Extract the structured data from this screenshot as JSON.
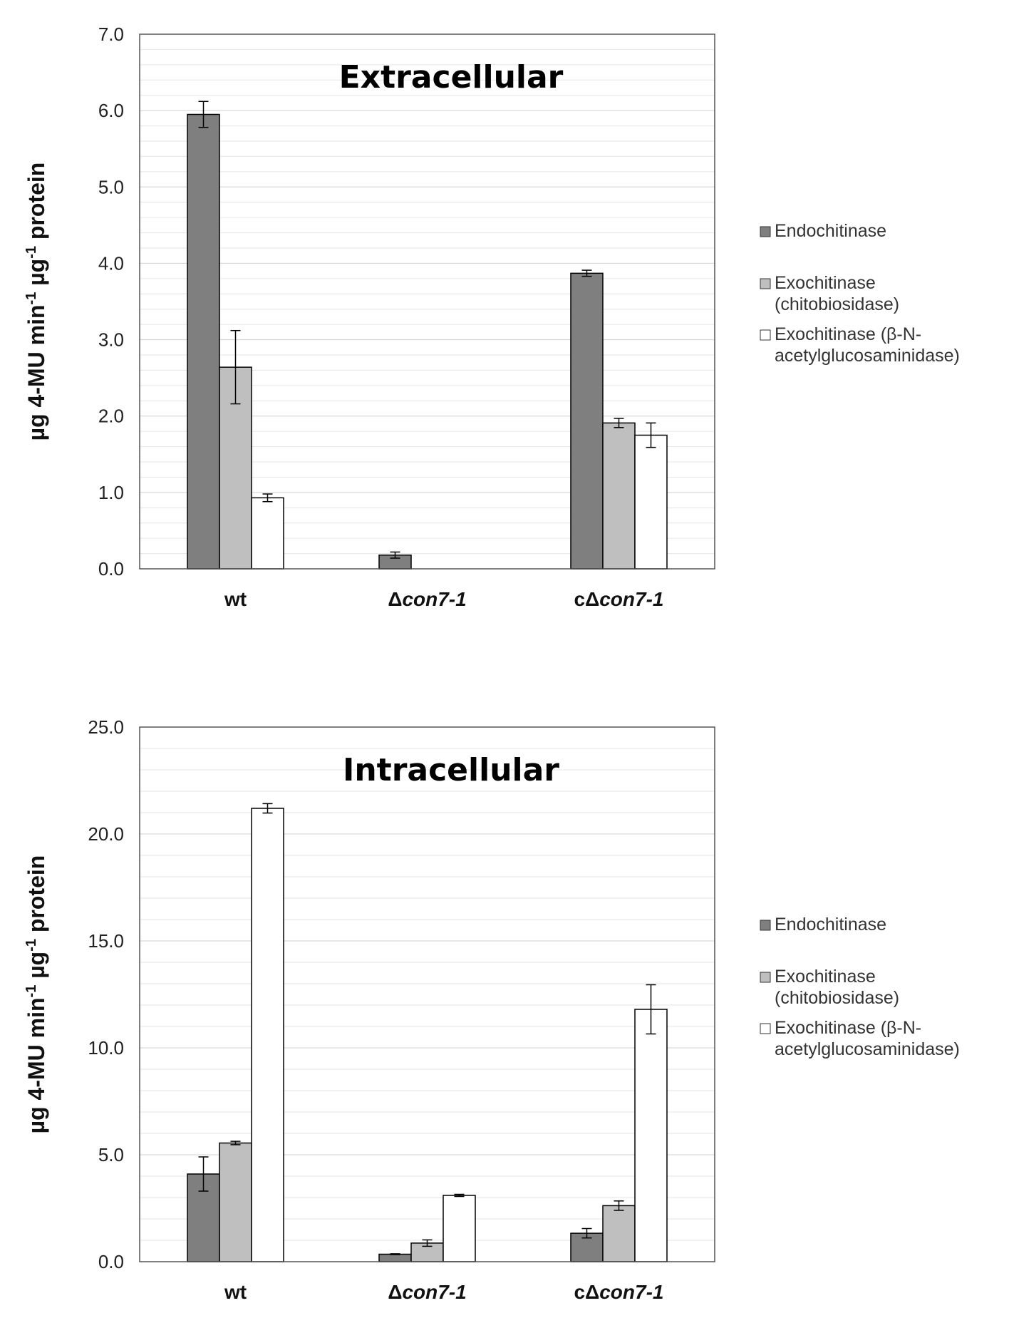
{
  "chart_data": [
    {
      "type": "bar",
      "title": "Extracellular",
      "ylabel": {
        "part1": "µg 4-MU min",
        "sup1": "-1",
        "part2": " µg",
        "sup2": "-1",
        "part3": " protein"
      },
      "ylim": [
        0,
        7.0
      ],
      "ytick_labels": [
        "0.0",
        "1.0",
        "2.0",
        "3.0",
        "4.0",
        "5.0",
        "6.0",
        "7.0"
      ],
      "ytick_values": [
        0,
        1,
        2,
        3,
        4,
        5,
        6,
        7
      ],
      "minor_step": 0.2,
      "grid": true,
      "legend_position": "right",
      "categories": [
        {
          "prefix": "",
          "italic": "wt",
          "italic_style": "normal"
        },
        {
          "prefix": "Δ",
          "italic": "con7-1",
          "italic_style": "italic"
        },
        {
          "prefix": "cΔ",
          "italic": "con7-1",
          "italic_style": "italic"
        }
      ],
      "series": [
        {
          "name": "Endochitinase",
          "color": "#7f7f7f",
          "values": [
            5.95,
            0.18,
            3.87
          ],
          "errors": [
            0.17,
            0.04,
            0.04
          ]
        },
        {
          "name": "Exochitinase (chitobiosidase)",
          "color": "#bfbfbf",
          "values": [
            2.64,
            0,
            1.91
          ],
          "errors": [
            0.48,
            0,
            0.06
          ]
        },
        {
          "name": "Exochitinase (β-N-acetylglucosaminidase)",
          "color": "#ffffff",
          "values": [
            0.93,
            0,
            1.75
          ],
          "errors": [
            0.05,
            0,
            0.16
          ]
        }
      ],
      "legend": [
        {
          "lines": [
            "Endochitinase"
          ]
        },
        {
          "lines": [
            "Exochitinase",
            "(chitobiosidase)"
          ]
        },
        {
          "lines": [
            "Exochitinase (β-N-",
            "acetylglucosaminidase)"
          ]
        }
      ]
    },
    {
      "type": "bar",
      "title": "Intracellular",
      "ylabel": {
        "part1": "µg 4-MU min",
        "sup1": "-1",
        "part2": " µg",
        "sup2": "-1",
        "part3": " protein"
      },
      "ylim": [
        0,
        25.0
      ],
      "ytick_labels": [
        "0.0",
        "5.0",
        "10.0",
        "15.0",
        "20.0",
        "25.0"
      ],
      "ytick_values": [
        0,
        5,
        10,
        15,
        20,
        25
      ],
      "minor_step": 1,
      "grid": true,
      "legend_position": "right",
      "categories": [
        {
          "prefix": "",
          "italic": "wt",
          "italic_style": "normal"
        },
        {
          "prefix": "Δ",
          "italic": "con7-1",
          "italic_style": "italic"
        },
        {
          "prefix": "cΔ",
          "italic": "con7-1",
          "italic_style": "italic"
        }
      ],
      "series": [
        {
          "name": "Endochitinase",
          "color": "#7f7f7f",
          "values": [
            4.1,
            0.35,
            1.33
          ],
          "errors": [
            0.8,
            0.02,
            0.22
          ]
        },
        {
          "name": "Exochitinase (chitobiosidase)",
          "color": "#bfbfbf",
          "values": [
            5.55,
            0.87,
            2.62
          ],
          "errors": [
            0.08,
            0.15,
            0.22
          ]
        },
        {
          "name": "Exochitinase (β-N-acetylglucosaminidase)",
          "color": "#ffffff",
          "values": [
            21.2,
            3.1,
            11.8
          ],
          "errors": [
            0.22,
            0.05,
            1.15
          ]
        }
      ],
      "legend": [
        {
          "lines": [
            "Endochitinase"
          ]
        },
        {
          "lines": [
            "Exochitinase",
            "(chitobiosidase)"
          ]
        },
        {
          "lines": [
            "Exochitinase (β-N-",
            "acetylglucosaminidase)"
          ]
        }
      ]
    }
  ]
}
